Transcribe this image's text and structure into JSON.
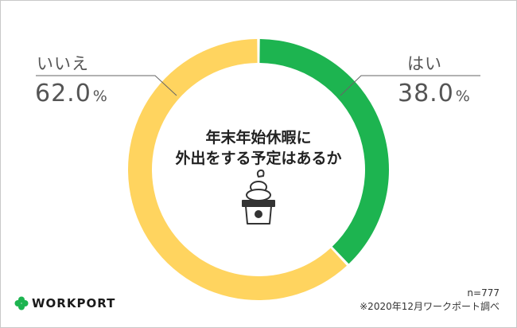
{
  "chart_data": {
    "type": "pie",
    "title": "年末年始休暇に\n外出をする予定はあるか",
    "title_lines": [
      "年末年始休暇に",
      "外出をする予定はあるか"
    ],
    "series": [
      {
        "name": "はい",
        "value": 38.0,
        "value_text": "38.0",
        "color": "#1db450"
      },
      {
        "name": "いいえ",
        "value": 62.0,
        "value_text": "62.0",
        "color": "#ffd45f"
      }
    ],
    "unit": "%",
    "start_angle": "top",
    "direction": "clockwise"
  },
  "labels": {
    "yes": {
      "name": "はい",
      "value": "38.0",
      "unit": "%"
    },
    "no": {
      "name": "いいえ",
      "value": "62.0",
      "unit": "%"
    }
  },
  "footer": {
    "sample": "n=777",
    "source": "※2020年12月ワークポート調べ"
  },
  "logo": {
    "text": "WORKPORT",
    "color": "#1db450"
  },
  "icon": {
    "name": "kagami-mochi-icon"
  }
}
